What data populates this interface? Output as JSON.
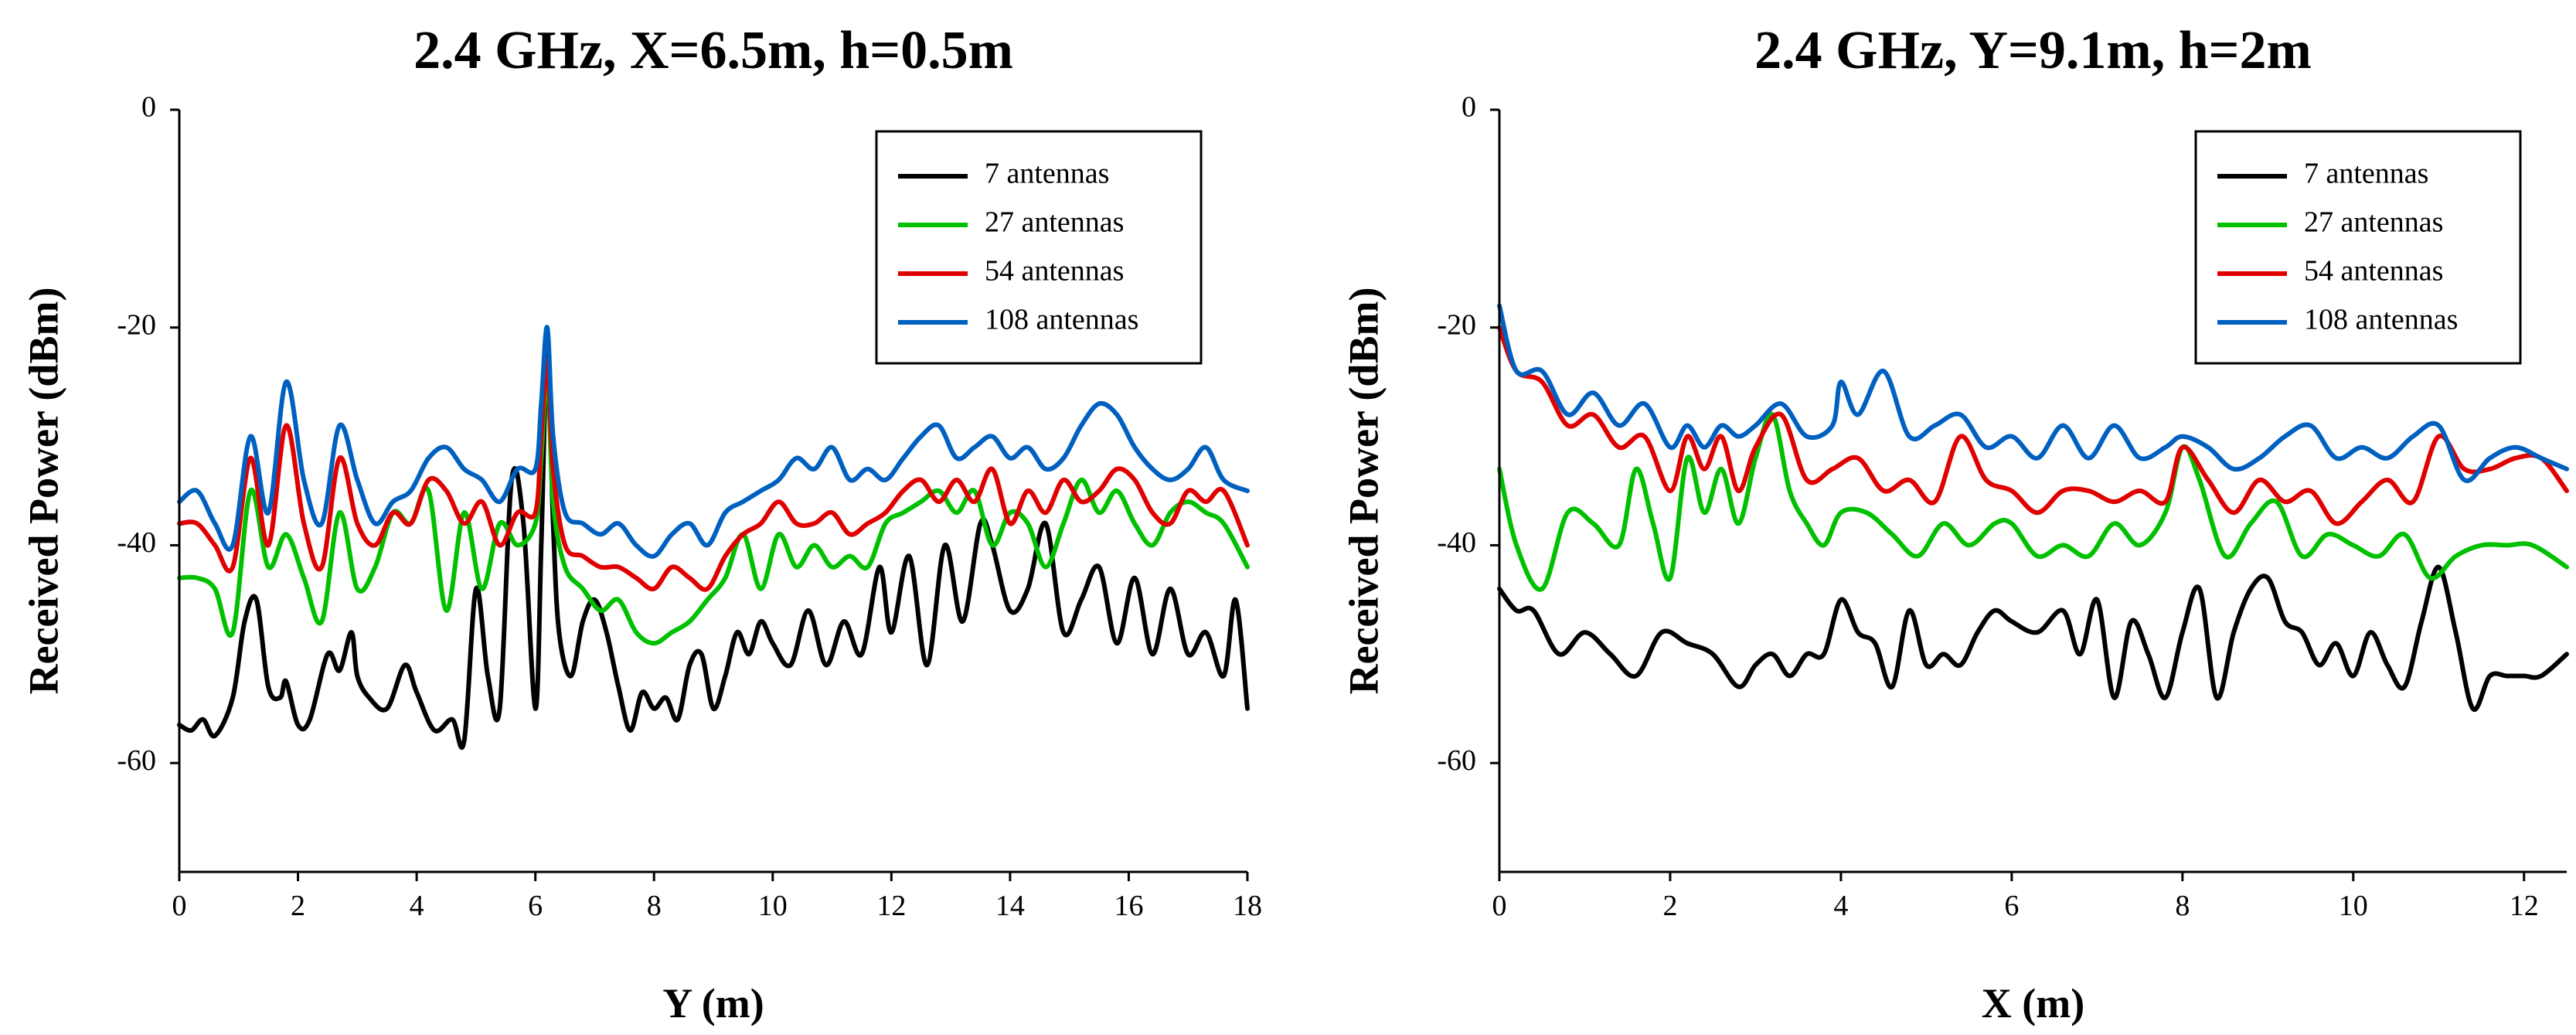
{
  "chart_data": [
    {
      "type": "line",
      "title": "2.4 GHz, X=6.5m, h=0.5m",
      "xlabel": "Y (m)",
      "ylabel": "Received Power (dBm)",
      "xlim": [
        0,
        18
      ],
      "ylim": [
        -70,
        0
      ],
      "xticks": [
        0,
        2,
        4,
        6,
        8,
        10,
        12,
        14,
        16,
        18
      ],
      "yticks": [
        0,
        -20,
        -40,
        -60
      ],
      "xtick_labels": [
        "0",
        "2",
        "4",
        "6",
        "8",
        "10",
        "12",
        "14",
        "16",
        "18"
      ],
      "ytick_labels": [
        "0",
        "-20",
        "-40",
        "-60"
      ],
      "legend_position": "top-right",
      "series": [
        {
          "name": "7 antennas",
          "color": "#000000",
          "x": [
            0,
            0.2,
            0.4,
            0.6,
            0.9,
            1.1,
            1.3,
            1.5,
            1.7,
            1.8,
            2.0,
            2.2,
            2.5,
            2.7,
            2.9,
            3.0,
            3.2,
            3.5,
            3.8,
            4.0,
            4.3,
            4.6,
            4.8,
            5.0,
            5.2,
            5.4,
            5.6,
            5.8,
            6.0,
            6.1,
            6.2,
            6.3,
            6.4,
            6.6,
            6.8,
            7.0,
            7.2,
            7.4,
            7.6,
            7.8,
            8.0,
            8.2,
            8.4,
            8.6,
            8.8,
            9.0,
            9.2,
            9.4,
            9.6,
            9.8,
            10.0,
            10.3,
            10.6,
            10.9,
            11.2,
            11.5,
            11.8,
            12.0,
            12.3,
            12.6,
            12.9,
            13.2,
            13.5,
            13.7,
            14.0,
            14.3,
            14.6,
            14.9,
            15.2,
            15.5,
            15.8,
            16.1,
            16.4,
            16.7,
            17.0,
            17.3,
            17.6,
            17.8,
            18.0
          ],
          "values": [
            -56.5,
            -57,
            -56,
            -57.5,
            -54,
            -47,
            -45,
            -53,
            -54,
            -52.5,
            -56.5,
            -56,
            -50,
            -51.5,
            -48,
            -52,
            -54,
            -55,
            -51,
            -53.5,
            -57,
            -56,
            -58,
            -44,
            -52,
            -55,
            -34,
            -38,
            -55,
            -40,
            -22,
            -38,
            -48,
            -52,
            -47,
            -45,
            -48,
            -53,
            -57,
            -53.5,
            -55,
            -54,
            -56,
            -51,
            -50,
            -55,
            -52,
            -48,
            -50,
            -47,
            -49,
            -51,
            -46,
            -51,
            -47,
            -50,
            -42,
            -48,
            -41,
            -51,
            -40,
            -47,
            -38,
            -40,
            -46,
            -44,
            -38,
            -48,
            -45,
            -42,
            -49,
            -43,
            -50,
            -44,
            -50,
            -48,
            -52,
            -45,
            -55
          ]
        },
        {
          "name": "27 antennas",
          "color": "#00c000",
          "x": [
            0,
            0.3,
            0.6,
            0.9,
            1.2,
            1.5,
            1.8,
            2.1,
            2.4,
            2.7,
            3.0,
            3.3,
            3.6,
            3.9,
            4.2,
            4.5,
            4.8,
            5.1,
            5.4,
            5.7,
            6.0,
            6.1,
            6.2,
            6.3,
            6.5,
            6.8,
            7.1,
            7.4,
            7.7,
            8.0,
            8.3,
            8.6,
            8.9,
            9.2,
            9.5,
            9.8,
            10.1,
            10.4,
            10.7,
            11.0,
            11.3,
            11.6,
            11.9,
            12.2,
            12.5,
            12.8,
            13.1,
            13.4,
            13.7,
            14.0,
            14.3,
            14.6,
            14.9,
            15.2,
            15.5,
            15.8,
            16.1,
            16.4,
            16.7,
            17.0,
            17.3,
            17.6,
            18.0
          ],
          "values": [
            -43,
            -43,
            -44,
            -48,
            -35,
            -42,
            -39,
            -43,
            -47,
            -37,
            -44,
            -42,
            -37,
            -38,
            -35,
            -46,
            -37,
            -44,
            -38,
            -40,
            -38,
            -32,
            -24,
            -36,
            -42,
            -44,
            -46,
            -45,
            -48,
            -49,
            -48,
            -47,
            -45,
            -43,
            -39,
            -44,
            -39,
            -42,
            -40,
            -42,
            -41,
            -42,
            -38,
            -37,
            -36,
            -35,
            -37,
            -35,
            -40,
            -37,
            -38,
            -42,
            -38,
            -34,
            -37,
            -35,
            -38,
            -40,
            -37,
            -36,
            -37,
            -38,
            -42
          ]
        },
        {
          "name": "54 antennas",
          "color": "#e00000",
          "x": [
            0,
            0.3,
            0.6,
            0.9,
            1.2,
            1.5,
            1.8,
            2.1,
            2.4,
            2.7,
            3.0,
            3.3,
            3.6,
            3.9,
            4.2,
            4.5,
            4.8,
            5.1,
            5.4,
            5.7,
            6.0,
            6.1,
            6.2,
            6.3,
            6.5,
            6.8,
            7.1,
            7.4,
            7.7,
            8.0,
            8.3,
            8.6,
            8.9,
            9.2,
            9.5,
            9.8,
            10.1,
            10.4,
            10.7,
            11.0,
            11.3,
            11.6,
            11.9,
            12.2,
            12.5,
            12.8,
            13.1,
            13.4,
            13.7,
            14.0,
            14.3,
            14.6,
            14.9,
            15.2,
            15.5,
            15.8,
            16.1,
            16.4,
            16.7,
            17.0,
            17.3,
            17.6,
            18.0
          ],
          "values": [
            -38,
            -38,
            -40,
            -42,
            -32,
            -40,
            -29,
            -38,
            -42,
            -32,
            -38,
            -40,
            -37,
            -38,
            -34,
            -35,
            -38,
            -36,
            -40,
            -37,
            -37,
            -30,
            -23,
            -33,
            -40,
            -41,
            -42,
            -42,
            -43,
            -44,
            -42,
            -43,
            -44,
            -41,
            -39,
            -38,
            -36,
            -38,
            -38,
            -37,
            -39,
            -38,
            -37,
            -35,
            -34,
            -36,
            -34,
            -36,
            -33,
            -38,
            -35,
            -37,
            -34,
            -36,
            -35,
            -33,
            -34,
            -37,
            -38,
            -35,
            -36,
            -35,
            -40
          ]
        },
        {
          "name": "108 antennas",
          "color": "#0060c0",
          "x": [
            0,
            0.3,
            0.6,
            0.9,
            1.2,
            1.5,
            1.8,
            2.1,
            2.4,
            2.7,
            3.0,
            3.3,
            3.6,
            3.9,
            4.2,
            4.5,
            4.8,
            5.1,
            5.4,
            5.7,
            6.0,
            6.1,
            6.2,
            6.3,
            6.5,
            6.8,
            7.1,
            7.4,
            7.7,
            8.0,
            8.3,
            8.6,
            8.9,
            9.2,
            9.5,
            9.8,
            10.1,
            10.4,
            10.7,
            11.0,
            11.3,
            11.6,
            11.9,
            12.2,
            12.5,
            12.8,
            13.1,
            13.4,
            13.7,
            14.0,
            14.3,
            14.6,
            14.9,
            15.2,
            15.5,
            15.8,
            16.1,
            16.4,
            16.7,
            17.0,
            17.3,
            17.6,
            18.0
          ],
          "values": [
            -36,
            -35,
            -38,
            -40,
            -30,
            -37,
            -25,
            -34,
            -38,
            -29,
            -34,
            -38,
            -36,
            -35,
            -32,
            -31,
            -33,
            -34,
            -36,
            -33,
            -33,
            -27,
            -20,
            -30,
            -37,
            -38,
            -39,
            -38,
            -40,
            -41,
            -39,
            -38,
            -40,
            -37,
            -36,
            -35,
            -34,
            -32,
            -33,
            -31,
            -34,
            -33,
            -34,
            -32,
            -30,
            -29,
            -32,
            -31,
            -30,
            -32,
            -31,
            -33,
            -32,
            -29,
            -27,
            -28,
            -31,
            -33,
            -34,
            -33,
            -31,
            -34,
            -35
          ]
        }
      ]
    },
    {
      "type": "line",
      "title": "2.4 GHz, Y=9.1m, h=2m",
      "xlabel": "X (m)",
      "ylabel": "Received Power (dBm)",
      "xlim": [
        0,
        12.5
      ],
      "ylim": [
        -70,
        0
      ],
      "xticks": [
        0,
        2,
        4,
        6,
        8,
        10,
        12
      ],
      "yticks": [
        0,
        -20,
        -40,
        -60
      ],
      "xtick_labels": [
        "0",
        "2",
        "4",
        "6",
        "8",
        "10",
        "12"
      ],
      "ytick_labels": [
        "0",
        "-20",
        "-40",
        "-60"
      ],
      "legend_position": "top-right",
      "series": [
        {
          "name": "7 antennas",
          "color": "#000000",
          "x": [
            0,
            0.2,
            0.4,
            0.7,
            1.0,
            1.3,
            1.6,
            1.9,
            2.2,
            2.5,
            2.8,
            3.0,
            3.2,
            3.4,
            3.6,
            3.8,
            4.0,
            4.2,
            4.4,
            4.6,
            4.8,
            5.0,
            5.2,
            5.4,
            5.6,
            5.8,
            6.0,
            6.3,
            6.6,
            6.8,
            7.0,
            7.2,
            7.4,
            7.6,
            7.8,
            8.0,
            8.2,
            8.4,
            8.6,
            8.8,
            9.0,
            9.2,
            9.4,
            9.6,
            9.8,
            10.0,
            10.2,
            10.4,
            10.6,
            10.8,
            11.0,
            11.2,
            11.4,
            11.6,
            11.8,
            12.0,
            12.2,
            12.5
          ],
          "values": [
            -44,
            -46,
            -46,
            -50,
            -48,
            -50,
            -52,
            -48,
            -49,
            -50,
            -53,
            -51,
            -50,
            -52,
            -50,
            -50,
            -45,
            -48,
            -49,
            -53,
            -46,
            -51,
            -50,
            -51,
            -48,
            -46,
            -47,
            -48,
            -46,
            -50,
            -45,
            -54,
            -47,
            -50,
            -54,
            -48,
            -44,
            -54,
            -48,
            -44,
            -43,
            -47,
            -48,
            -51,
            -49,
            -52,
            -48,
            -51,
            -53,
            -47,
            -42,
            -48,
            -55,
            -52,
            -52,
            -52,
            -52,
            -50
          ]
        },
        {
          "name": "27 antennas",
          "color": "#00c000",
          "x": [
            0,
            0.2,
            0.5,
            0.8,
            1.1,
            1.4,
            1.6,
            1.8,
            2.0,
            2.2,
            2.4,
            2.6,
            2.8,
            3.0,
            3.2,
            3.4,
            3.6,
            3.8,
            4.0,
            4.3,
            4.6,
            4.9,
            5.2,
            5.5,
            5.8,
            6.0,
            6.3,
            6.6,
            6.9,
            7.2,
            7.5,
            7.8,
            8.0,
            8.2,
            8.5,
            8.8,
            9.1,
            9.4,
            9.7,
            10.0,
            10.3,
            10.6,
            10.9,
            11.2,
            11.5,
            11.8,
            12.1,
            12.5
          ],
          "values": [
            -33,
            -40,
            -44,
            -37,
            -38,
            -40,
            -33,
            -38,
            -43,
            -32,
            -37,
            -33,
            -38,
            -32,
            -28,
            -35,
            -38,
            -40,
            -37,
            -37,
            -39,
            -41,
            -38,
            -40,
            -38,
            -38,
            -41,
            -40,
            -41,
            -38,
            -40,
            -37,
            -31,
            -34,
            -41,
            -38,
            -36,
            -41,
            -39,
            -40,
            -41,
            -39,
            -43,
            -41,
            -40,
            -40,
            -40,
            -42
          ]
        },
        {
          "name": "54 antennas",
          "color": "#e00000",
          "x": [
            0,
            0.2,
            0.5,
            0.8,
            1.1,
            1.4,
            1.7,
            2.0,
            2.2,
            2.4,
            2.6,
            2.8,
            3.0,
            3.3,
            3.6,
            3.9,
            4.2,
            4.5,
            4.8,
            5.1,
            5.4,
            5.7,
            6.0,
            6.3,
            6.6,
            6.9,
            7.2,
            7.5,
            7.8,
            8.0,
            8.3,
            8.6,
            8.9,
            9.2,
            9.5,
            9.8,
            10.1,
            10.4,
            10.7,
            11.0,
            11.3,
            11.6,
            11.9,
            12.2,
            12.5
          ],
          "values": [
            -20,
            -24,
            -25,
            -29,
            -28,
            -31,
            -30,
            -35,
            -30,
            -33,
            -30,
            -35,
            -31,
            -28,
            -34,
            -33,
            -32,
            -35,
            -34,
            -36,
            -30,
            -34,
            -35,
            -37,
            -35,
            -35,
            -36,
            -35,
            -36,
            -31,
            -34,
            -37,
            -34,
            -36,
            -35,
            -38,
            -36,
            -34,
            -36,
            -30,
            -33,
            -33,
            -32,
            -32,
            -35
          ]
        },
        {
          "name": "108 antennas",
          "color": "#0060c0",
          "x": [
            0,
            0.2,
            0.5,
            0.8,
            1.1,
            1.4,
            1.7,
            2.0,
            2.2,
            2.4,
            2.6,
            2.8,
            3.0,
            3.3,
            3.6,
            3.9,
            4.0,
            4.2,
            4.5,
            4.8,
            5.1,
            5.4,
            5.7,
            6.0,
            6.3,
            6.6,
            6.9,
            7.2,
            7.5,
            7.8,
            8.0,
            8.3,
            8.6,
            8.9,
            9.2,
            9.5,
            9.8,
            10.1,
            10.4,
            10.7,
            11.0,
            11.3,
            11.6,
            11.9,
            12.2,
            12.5
          ],
          "values": [
            -18,
            -24,
            -24,
            -28,
            -26,
            -29,
            -27,
            -31,
            -29,
            -31,
            -29,
            -30,
            -29,
            -27,
            -30,
            -29,
            -25,
            -28,
            -24,
            -30,
            -29,
            -28,
            -31,
            -30,
            -32,
            -29,
            -32,
            -29,
            -32,
            -31,
            -30,
            -31,
            -33,
            -32,
            -30,
            -29,
            -32,
            -31,
            -32,
            -30,
            -29,
            -34,
            -32,
            -31,
            -32,
            -33
          ]
        }
      ]
    }
  ]
}
